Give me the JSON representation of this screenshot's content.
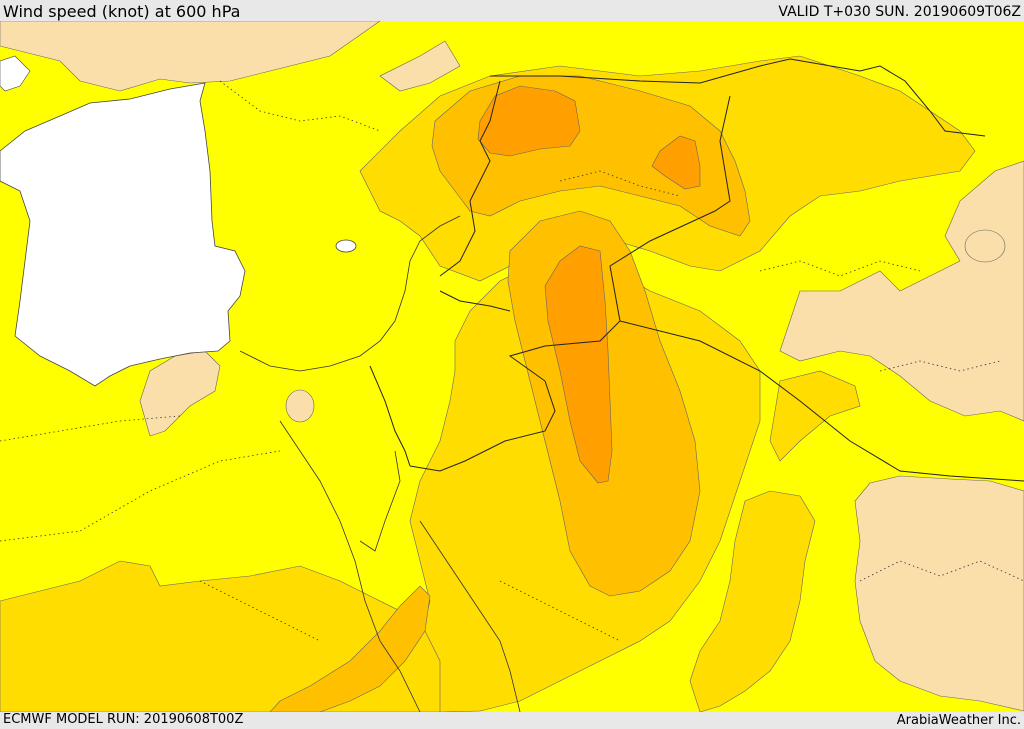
{
  "header": {
    "title": "Wind speed (knot) at 600 hPa",
    "valid": "VALID T+030 SUN. 20190609T06Z"
  },
  "footer": {
    "model_run": "ECMWF MODEL RUN: 20190608T00Z",
    "credit": "ArabiaWeather Inc."
  },
  "colors": {
    "calm": "#fbdfaa",
    "light": "#ffff00",
    "moderate": "#ffdd00",
    "fresh": "#ffc000",
    "strong": "#ffa000",
    "sea": "#ffffff"
  }
}
